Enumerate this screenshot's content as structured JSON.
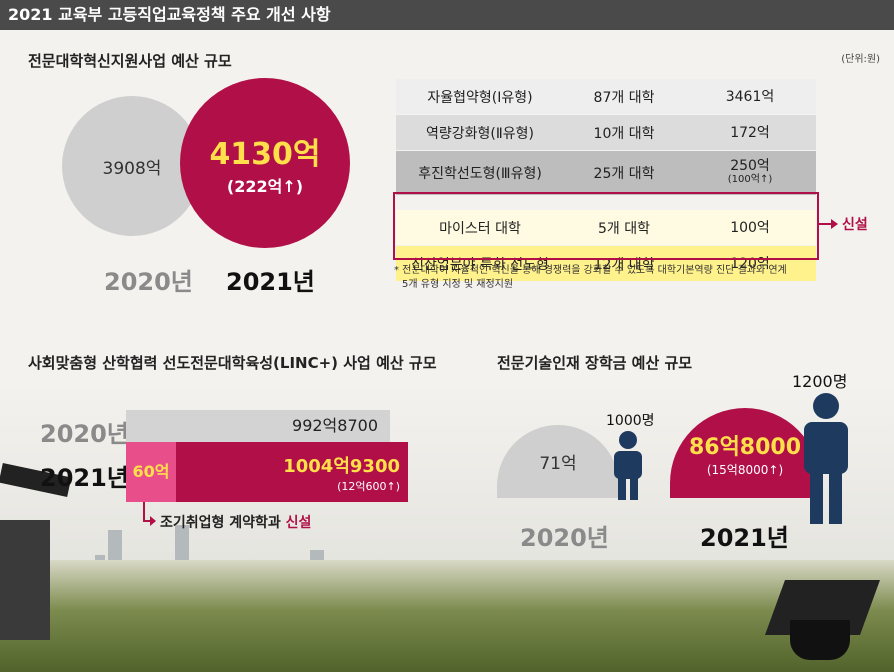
{
  "header": {
    "title": "2021 교육부 고등직업교육정책 주요 개선 사항"
  },
  "budget": {
    "title": "전문대학혁신지원사업 예산 규모",
    "unit": "(단위:원)",
    "value_2020": "3908억",
    "value_2021": "4130억",
    "increase_2021": "(222억↑)",
    "year_2020": "2020년",
    "year_2021": "2021년",
    "rows": [
      {
        "type": "자율협약형(Ⅰ유형)",
        "count": "87개 대학",
        "amount": "3461억",
        "sub": ""
      },
      {
        "type": "역량강화형(Ⅱ유형)",
        "count": "10개 대학",
        "amount": "172억",
        "sub": ""
      },
      {
        "type": "후진학선도형(Ⅲ유형)",
        "count": "25개 대학",
        "amount": "250억",
        "sub": "(100억↑)"
      },
      {
        "type": "마이스터 대학",
        "count": "5개 대학",
        "amount": "100억",
        "sub": ""
      },
      {
        "type": "신산업분야 특화 선도형",
        "count": "12개 대학",
        "amount": "120억",
        "sub": ""
      }
    ],
    "new_label": "신설",
    "note_line1": "* 전문대학이 자율적인 혁신을 통해 경쟁력을 강화할 수 있도록 대학기본역량 진단 결과와 연계",
    "note_line2": "5개 유형 지정 및 재정지원"
  },
  "linc": {
    "title": "사회맞춤형 산학협력 선도전문대학육성(LINC+) 사업 예산 규모",
    "year_2020": "2020년",
    "year_2021": "2021년",
    "value_2020": "992억8700",
    "value_new": "60억",
    "value_2021": "1004억9300",
    "increase_2021": "(12억600↑)",
    "callout_text": "조기취업형 계약학과 ",
    "callout_new": "신설"
  },
  "scholarship": {
    "title": "전문기술인재 장학금 예산 규모",
    "value_2020": "71억",
    "people_2020": "1000명",
    "value_2021": "86억8000",
    "increase_2021": "(15억8000↑)",
    "people_2021": "1200명",
    "year_2020": "2020년",
    "year_2021": "2021년"
  },
  "colors": {
    "accent": "#b10f47",
    "highlight": "#ffe04a",
    "navy": "#1f3a5f"
  },
  "icons": [
    "person-icon",
    "graduation-cap-icon"
  ]
}
